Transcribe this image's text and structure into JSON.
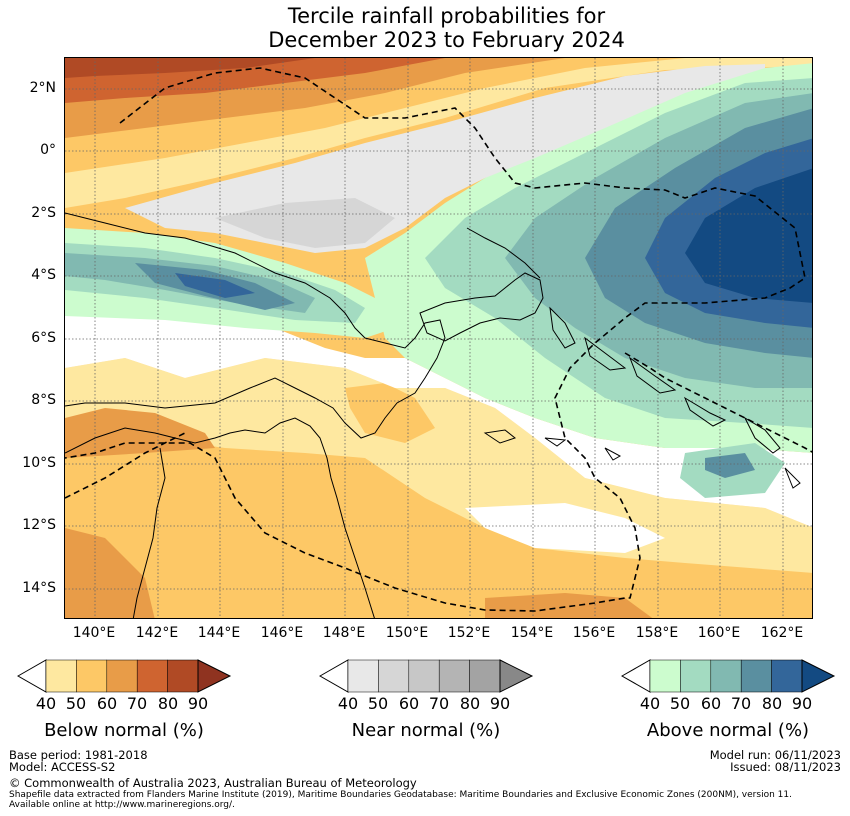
{
  "title_line1": "Tercile rainfall probabilities for",
  "title_line2": "December 2023 to February 2024",
  "lat_ticks": [
    "2°N",
    "0°",
    "2°S",
    "4°S",
    "6°S",
    "8°S",
    "10°S",
    "12°S",
    "14°S"
  ],
  "lon_ticks": [
    "140°E",
    "142°E",
    "144°E",
    "146°E",
    "148°E",
    "150°E",
    "152°E",
    "154°E",
    "156°E",
    "158°E",
    "160°E",
    "162°E"
  ],
  "legend": {
    "below": {
      "title": "Below normal (%)",
      "ticks": [
        "40",
        "50",
        "60",
        "70",
        "80",
        "90"
      ],
      "colors": [
        "#fee8a0",
        "#fdc866",
        "#e89c48",
        "#cf6430",
        "#b04a25",
        "#8f3320"
      ]
    },
    "near": {
      "title": "Near normal (%)",
      "ticks": [
        "40",
        "50",
        "60",
        "70",
        "80",
        "90"
      ],
      "colors": [
        "#e8e8e8",
        "#d6d6d6",
        "#c7c7c7",
        "#b4b4b4",
        "#a3a3a3",
        "#888888"
      ]
    },
    "above": {
      "title": "Above normal (%)",
      "ticks": [
        "40",
        "50",
        "60",
        "70",
        "80",
        "90"
      ],
      "colors": [
        "#ccfcce",
        "#a3dbc1",
        "#81b9b1",
        "#5a8fa0",
        "#33669a",
        "#134a82"
      ]
    }
  },
  "footer": {
    "base_period": "Base period: 1981-2018",
    "model": "Model: ACCESS-S2",
    "model_run": "Model run: 06/11/2023",
    "issued": "Issued: 08/11/2023",
    "copyright": "© Commonwealth of Australia 2023, Australian Bureau of Meteorology",
    "shapefile": "Shapefile data extracted from Flanders Marine Institute (2019), Maritime Boundaries Geodatabase: Maritime Boundaries and Exclusive Economic Zones (200NM), version 11.",
    "available": "Available online at http://www.marineregions.org/."
  }
}
